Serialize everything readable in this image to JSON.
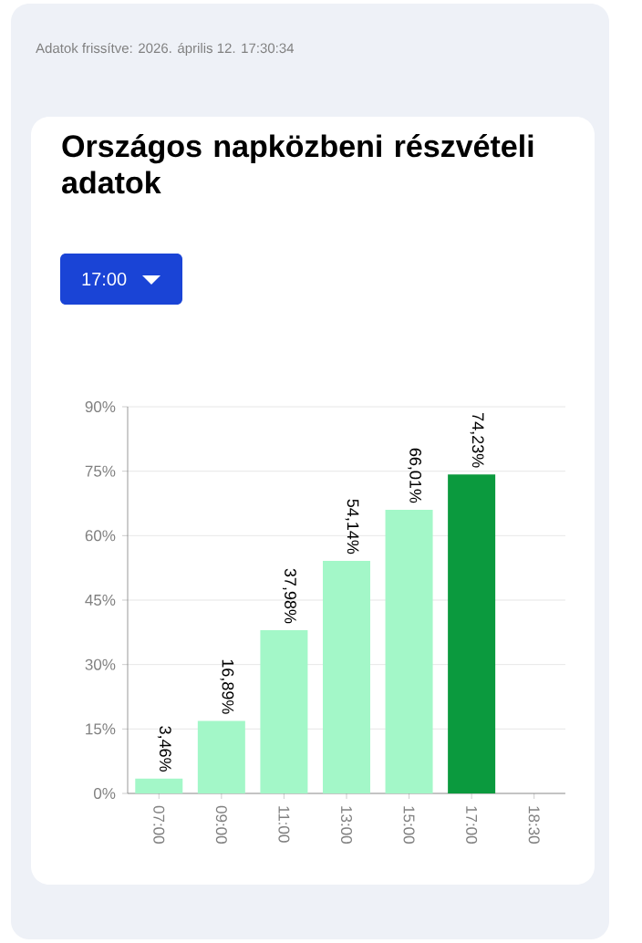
{
  "chart_data": {
    "type": "bar",
    "title": "Országos napközbeni részvételi adatok",
    "annotations": [
      "Adatok frissítve: 2026. április 12. 17:30:34",
      "17:00"
    ],
    "categories": [
      "07:00",
      "09:00",
      "11:00",
      "13:00",
      "15:00",
      "17:00",
      "18:30"
    ],
    "values": [
      3.46,
      16.89,
      37.98,
      54.14,
      66.01,
      74.23,
      null
    ],
    "colors": [
      "#a3f7c8",
      "#a3f7c8",
      "#a3f7c8",
      "#a3f7c8",
      "#a3f7c8",
      "#0b9a3e",
      "#a3f7c8"
    ],
    "value_labels": [
      "3,46%",
      "16,89%",
      "37,98%",
      "54,14%",
      "66,01%",
      "74,23%",
      null
    ],
    "ylim": [
      0,
      90
    ],
    "yticks": [
      {
        "value": 0,
        "label": "0%"
      },
      {
        "value": 15,
        "label": "15%"
      },
      {
        "value": 30,
        "label": "30%"
      },
      {
        "value": 45,
        "label": "45%"
      },
      {
        "value": 60,
        "label": "60%"
      },
      {
        "value": 75,
        "label": "75%"
      },
      {
        "value": 90,
        "label": "90%"
      }
    ],
    "grid": "y"
  }
}
